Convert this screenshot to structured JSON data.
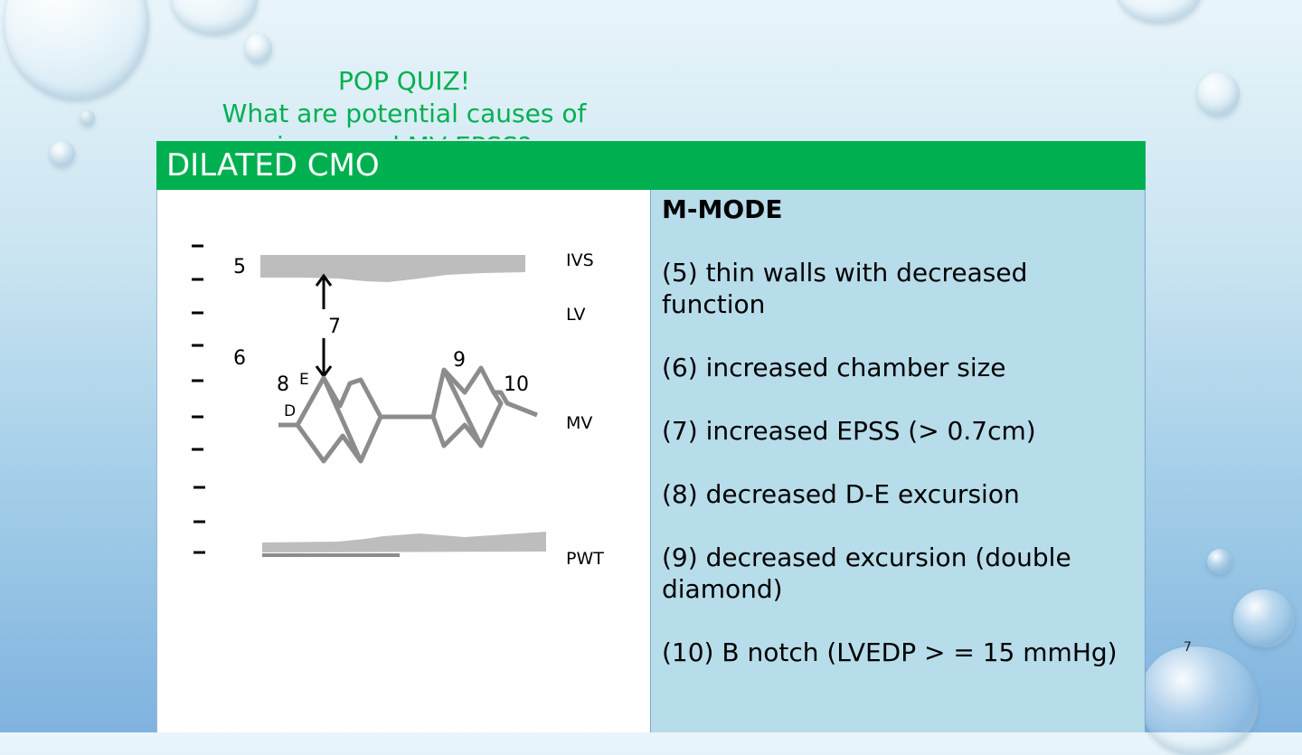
{
  "quiz": {
    "line1": "POP QUIZ!",
    "line2": "What are potential causes of",
    "line3": "increased MV EPSS?"
  },
  "table": {
    "header": "DILATED CMO",
    "diagram": {
      "labels": {
        "ivs": "IVS",
        "lv": "LV",
        "mv": "MV",
        "pwt": "PWT",
        "n5": "5",
        "n6": "6",
        "n7": "7",
        "n8": "8",
        "n9": "9",
        "n10": "10",
        "e": "E",
        "d": "D"
      }
    },
    "mmode": {
      "heading": "M-MODE",
      "items": [
        "(5) thin walls with decreased function",
        "(6) increased chamber size",
        "(7) increased EPSS (> 0.7cm)",
        "(8) decreased D-E excursion",
        "(9) decreased excursion (double diamond)",
        "(10) B notch (LVEDP > = 15 mmHg)"
      ]
    }
  },
  "slide_number": "7",
  "colors": {
    "accent_green": "#00b050",
    "cell_blue": "#b7dcea",
    "trace_gray": "#8c8c8c"
  }
}
